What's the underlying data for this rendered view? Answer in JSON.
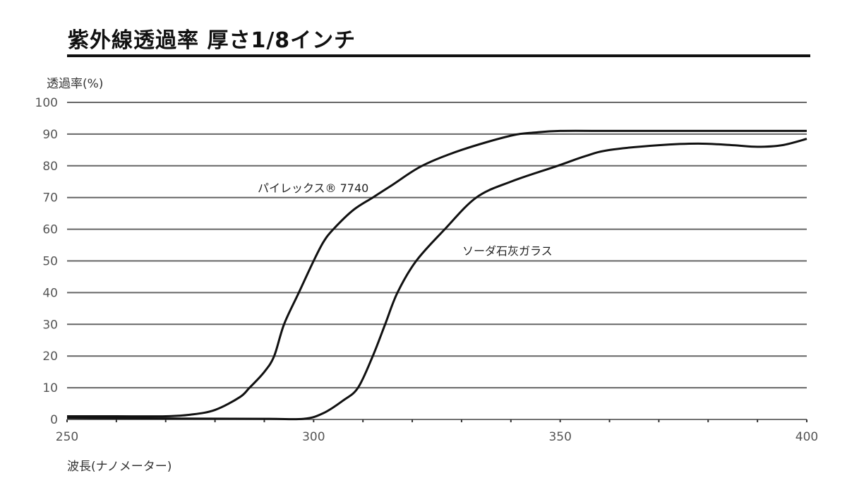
{
  "chart_data": {
    "type": "line",
    "title": "紫外線透過率 厚さ1/8インチ",
    "xlabel": "波長(ナノメーター)",
    "ylabel": "透過率(%)",
    "xlim": [
      250,
      400
    ],
    "ylim": [
      0,
      100
    ],
    "x_ticks": [
      250,
      300,
      350,
      400
    ],
    "x_minor_step": 10,
    "y_ticks": [
      0,
      10,
      20,
      30,
      40,
      50,
      60,
      70,
      80,
      90,
      100
    ],
    "grid": "horizontal",
    "legend": "inline labels",
    "series": [
      {
        "name": "パイレックス® 7740",
        "x": [
          250,
          260,
          270,
          275,
          280,
          285,
          287,
          290,
          292,
          294,
          297,
          300,
          302,
          304,
          308,
          312,
          316,
          322,
          330,
          340,
          345,
          350,
          360,
          370,
          380,
          390,
          400
        ],
        "y": [
          1,
          1,
          1,
          1.5,
          3,
          7,
          10,
          15,
          20,
          30,
          40,
          50,
          56,
          60,
          66,
          70,
          74,
          80,
          85,
          89.5,
          90.5,
          91,
          91,
          91,
          91,
          91,
          91
        ]
      },
      {
        "name": "ソーダ石灰ガラス",
        "x": [
          250,
          270,
          290,
          298,
          302,
          306,
          309,
          312,
          314.5,
          317,
          320.8,
          326.6,
          333,
          340,
          349.5,
          355,
          360,
          370,
          378,
          385,
          390,
          395,
          400
        ],
        "y": [
          0.5,
          0.3,
          0.2,
          0.2,
          2,
          6,
          10,
          20,
          30,
          40,
          50,
          60,
          70,
          75,
          80,
          83,
          85,
          86.5,
          87,
          86.5,
          86,
          86.5,
          88.5
        ]
      }
    ],
    "annotations": [
      {
        "text": "パイレックス® 7740",
        "x": 290,
        "y": 73
      },
      {
        "text": "ソーダ石灰ガラス",
        "x": 330,
        "y": 53
      }
    ]
  },
  "header": {
    "title": "紫外線透過率 厚さ1/8インチ"
  },
  "axes": {
    "y_label": "透過率(%)",
    "x_label": "波長(ナノメーター)"
  },
  "labels": {
    "pyrex": "パイレックス® 7740",
    "soda": "ソーダ石灰ガラス"
  },
  "colors": {
    "line": "#111111",
    "grid": "#666666",
    "text": "#333333"
  }
}
